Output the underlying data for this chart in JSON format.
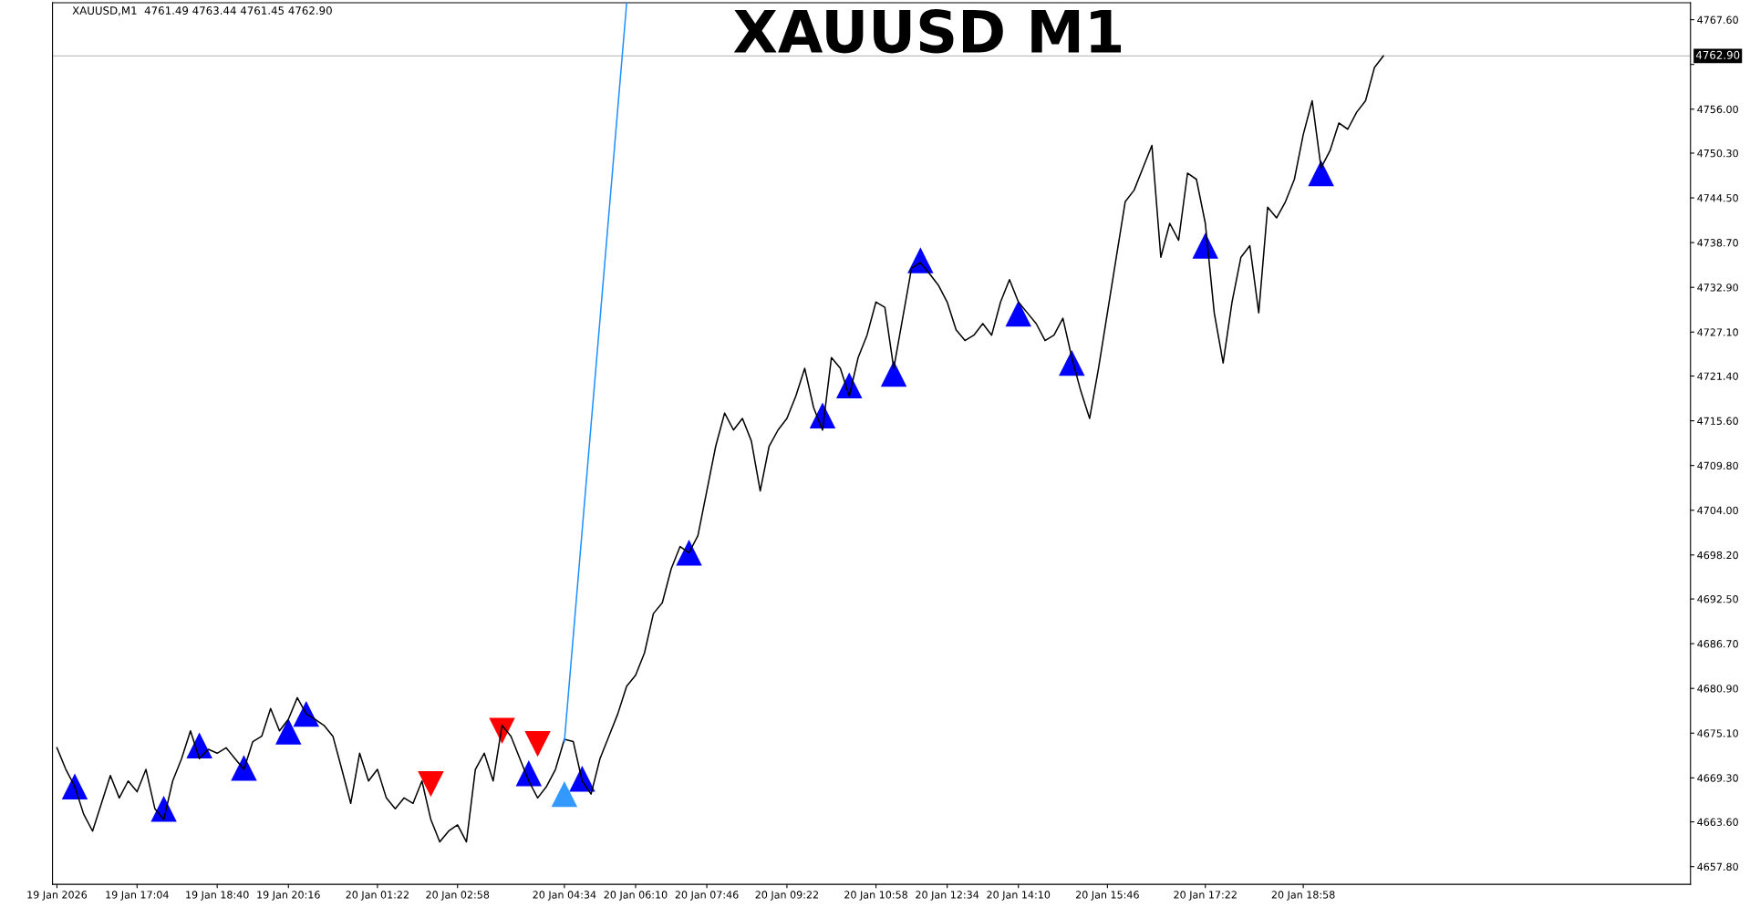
{
  "chart_data": {
    "type": "line",
    "title": "XAUUSD M1",
    "annotations": [
      "XAUUSD,M1  4761.49 4763.44 4761.45 4762.90"
    ],
    "categories": [
      "19 Jan 2026",
      null,
      null,
      null,
      null,
      null,
      null,
      null,
      null,
      "19 Jan 17:04",
      null,
      null,
      null,
      null,
      null,
      null,
      null,
      null,
      "19 Jan 18:40",
      null,
      null,
      null,
      null,
      null,
      null,
      null,
      "19 Jan 20:16",
      null,
      null,
      null,
      null,
      null,
      null,
      null,
      null,
      null,
      "20 Jan 01:22",
      null,
      null,
      null,
      null,
      null,
      null,
      null,
      null,
      "20 Jan 02:58",
      null,
      null,
      null,
      null,
      null,
      null,
      null,
      null,
      null,
      null,
      null,
      "20 Jan 04:34",
      null,
      null,
      null,
      null,
      null,
      null,
      null,
      "20 Jan 06:10",
      null,
      null,
      null,
      null,
      null,
      null,
      null,
      "20 Jan 07:46",
      null,
      null,
      null,
      null,
      null,
      null,
      null,
      null,
      "20 Jan 09:22",
      null,
      null,
      null,
      null,
      null,
      null,
      null,
      null,
      null,
      "20 Jan 10:58",
      null,
      null,
      null,
      null,
      null,
      null,
      null,
      "20 Jan 12:34",
      null,
      null,
      null,
      null,
      null,
      null,
      null,
      "20 Jan 14:10",
      null,
      null,
      null,
      null,
      null,
      null,
      null,
      null,
      null,
      "20 Jan 15:46",
      null,
      null,
      null,
      null,
      null,
      null,
      null,
      null,
      null,
      null,
      "20 Jan 17:22",
      null,
      null,
      null,
      null,
      null,
      null,
      null,
      null,
      null,
      null,
      "20 Jan 18:58",
      null,
      null,
      null,
      null,
      null,
      null,
      null,
      null,
      null,
      null,
      null,
      null,
      null,
      null,
      null,
      null,
      null,
      null,
      null,
      null,
      null,
      null,
      null,
      null,
      null,
      null,
      null,
      null,
      null,
      null,
      null,
      null,
      null,
      null,
      null,
      null,
      null,
      null,
      null,
      null,
      null,
      null,
      null
    ],
    "ylim": [
      4655.5,
      4769.8
    ],
    "yticks": [
      {
        "value": 4767.6,
        "label": "4767.60"
      },
      {
        "value": 4761.8,
        "label": null
      },
      {
        "value": 4756.0,
        "label": "4756.00"
      },
      {
        "value": 4750.3,
        "label": "4750.30"
      },
      {
        "value": 4744.5,
        "label": "4744.50"
      },
      {
        "value": 4738.7,
        "label": "4738.70"
      },
      {
        "value": 4732.9,
        "label": "4732.90"
      },
      {
        "value": 4727.1,
        "label": "4727.10"
      },
      {
        "value": 4721.4,
        "label": "4721.40"
      },
      {
        "value": 4715.6,
        "label": "4715.60"
      },
      {
        "value": 4709.8,
        "label": "4709.80"
      },
      {
        "value": 4704.0,
        "label": "4704.00"
      },
      {
        "value": 4698.2,
        "label": "4698.20"
      },
      {
        "value": 4692.5,
        "label": "4692.50"
      },
      {
        "value": 4686.7,
        "label": "4686.70"
      },
      {
        "value": 4680.9,
        "label": "4680.90"
      },
      {
        "value": 4675.1,
        "label": "4675.10"
      },
      {
        "value": 4669.3,
        "label": "4669.30"
      },
      {
        "value": 4663.6,
        "label": "4663.60"
      },
      {
        "value": 4657.8,
        "label": "4657.80"
      }
    ],
    "ref_lines": [
      {
        "axis": "y",
        "value": 4762.9,
        "label": "4762.90",
        "color": "#c0c0c0"
      }
    ],
    "series": [
      {
        "color": "#000000",
        "values": [
          4673.2,
          4670.4,
          4668.2,
          4664.6,
          4662.4,
          4666.0,
          4669.6,
          4666.7,
          4668.9,
          4667.5,
          4670.4,
          4665.3,
          4663.9,
          4668.9,
          4671.8,
          4675.4,
          4671.8,
          4673.0,
          4672.5,
          4673.2,
          4671.8,
          4670.4,
          4674.0,
          4674.7,
          4678.3,
          4675.4,
          4676.9,
          4679.7,
          4677.6,
          4676.9,
          4676.1,
          4674.7,
          4670.4,
          4666.0,
          4672.5,
          4668.9,
          4670.4,
          4666.7,
          4665.3,
          4666.7,
          4666.0,
          4668.9,
          4663.9,
          4661.0,
          4662.4,
          4663.2,
          4661.0,
          4670.4,
          4672.5,
          4668.9,
          4676.1,
          4674.7,
          4671.8,
          4668.9,
          4666.7,
          4668.2,
          4670.4,
          4674.3,
          4674.0,
          4668.9,
          4667.2,
          4671.8,
          4674.7,
          4677.6,
          4681.2,
          4682.6,
          4685.5,
          4690.6,
          4692.0,
          4696.4,
          4699.3,
          4698.5,
          4700.7,
          4706.5,
          4712.3,
          4716.6,
          4714.4,
          4715.9,
          4713.0,
          4706.5,
          4712.3,
          4714.4,
          4715.9,
          4718.8,
          4722.4,
          4717.3,
          4714.4,
          4723.8,
          4722.4,
          4718.8,
          4723.8,
          4726.7,
          4731.0,
          4730.3,
          4722.4,
          4728.9,
          4735.4,
          4736.1,
          4734.7,
          4733.2,
          4731.0,
          4727.4,
          4726.0,
          4726.7,
          4728.2,
          4726.7,
          4731.0,
          4733.9,
          4731.0,
          4729.6,
          4728.2,
          4726.0,
          4726.7,
          4728.9,
          4723.8,
          4719.5,
          4715.9,
          4722.4,
          4729.6,
          4736.8,
          4744.0,
          4745.5,
          4748.4,
          4751.3,
          4736.8,
          4741.2,
          4739.0,
          4747.7,
          4746.9,
          4741.2,
          4729.6,
          4723.1,
          4731.0,
          4736.8,
          4738.3,
          4729.6,
          4743.3,
          4741.9,
          4744.0,
          4746.9,
          4752.7,
          4757.1,
          4748.4,
          4750.6,
          4754.2,
          4753.4,
          4755.6,
          4757.1,
          4761.4,
          4762.9,
          null,
          null,
          null,
          null,
          null,
          null,
          null,
          null,
          null,
          null,
          null,
          null,
          null,
          null,
          null,
          null,
          null,
          null,
          null,
          null,
          null,
          null,
          null,
          null,
          null,
          null,
          null,
          null,
          null,
          null,
          null,
          null,
          null,
          null
        ]
      },
      {
        "color": "#1e90ff",
        "values": [
          null,
          null,
          null,
          null,
          null,
          null,
          null,
          null,
          null,
          null,
          null,
          null,
          null,
          null,
          null,
          null,
          null,
          null,
          null,
          null,
          null,
          null,
          null,
          null,
          null,
          null,
          null,
          null,
          null,
          null,
          null,
          null,
          null,
          null,
          null,
          null,
          null,
          null,
          null,
          null,
          null,
          null,
          null,
          null,
          null,
          null,
          null,
          null,
          null,
          null,
          null,
          null,
          null,
          null,
          null,
          null,
          null,
          4674.0,
          4687.7,
          4701.4,
          4715.1,
          4728.7,
          4742.4,
          4756.1,
          4769.8,
          null,
          null,
          null,
          null,
          null,
          null,
          null,
          null,
          null,
          null,
          null,
          null,
          null,
          null,
          null,
          null,
          null,
          null,
          null,
          null,
          null,
          null,
          null,
          null,
          null,
          null,
          null,
          null,
          null,
          null,
          null,
          null,
          null,
          null,
          null,
          null,
          null,
          null,
          null,
          null,
          null,
          null,
          null,
          null,
          null,
          null,
          null,
          null,
          null,
          null,
          null,
          null,
          null,
          null,
          null,
          null,
          null,
          null,
          null,
          null,
          null,
          null,
          null,
          null,
          null,
          null,
          null,
          null,
          null,
          null,
          null,
          null,
          null,
          null,
          null,
          null,
          null,
          null,
          null,
          null,
          null,
          null,
          null,
          null,
          null,
          null,
          null,
          null,
          null,
          null,
          null,
          null,
          null,
          null,
          null,
          null,
          null,
          null,
          null,
          null,
          null,
          null,
          null,
          null,
          null,
          null,
          null,
          null,
          null,
          null,
          null,
          null,
          null,
          null,
          null,
          null,
          null,
          null,
          null
        ]
      },
      {
        "type": "scatter",
        "color": "#0000ff",
        "marker": "triangle",
        "values": [
          null,
          null,
          4668.2,
          null,
          null,
          null,
          null,
          null,
          null,
          null,
          null,
          null,
          4665.3,
          null,
          null,
          null,
          4673.5,
          null,
          null,
          null,
          null,
          4670.6,
          null,
          null,
          null,
          null,
          4675.3,
          null,
          4677.6,
          null,
          null,
          null,
          null,
          null,
          null,
          null,
          null,
          null,
          null,
          null,
          null,
          null,
          null,
          null,
          null,
          null,
          null,
          null,
          null,
          null,
          null,
          null,
          null,
          4669.9,
          null,
          null,
          null,
          null,
          null,
          4669.2,
          null,
          null,
          null,
          null,
          null,
          null,
          null,
          null,
          null,
          null,
          null,
          4698.5,
          null,
          null,
          null,
          null,
          null,
          null,
          null,
          null,
          null,
          null,
          null,
          null,
          null,
          null,
          4716.3,
          null,
          null,
          4720.2,
          null,
          null,
          null,
          null,
          4721.7,
          null,
          null,
          4736.4,
          null,
          null,
          null,
          null,
          null,
          null,
          null,
          null,
          null,
          null,
          4729.5,
          null,
          null,
          null,
          null,
          null,
          4723.1,
          null,
          null,
          null,
          null,
          null,
          null,
          null,
          null,
          null,
          null,
          null,
          null,
          null,
          null,
          4738.3,
          null,
          null,
          null,
          null,
          null,
          null,
          null,
          null,
          null,
          null,
          null,
          null,
          4747.7,
          null,
          null,
          null,
          null,
          null,
          null,
          null,
          null,
          null,
          null,
          null,
          null,
          null,
          null,
          null,
          null,
          null,
          null,
          null,
          null,
          null,
          null,
          null,
          null,
          null,
          null,
          null,
          null,
          null,
          null,
          null,
          null,
          null,
          null,
          null,
          null,
          null,
          null,
          null,
          null,
          null
        ]
      },
      {
        "type": "scatter",
        "color": "#ff0000",
        "marker": "triangle-down",
        "values": [
          null,
          null,
          null,
          null,
          null,
          null,
          null,
          null,
          null,
          null,
          null,
          null,
          null,
          null,
          null,
          null,
          null,
          null,
          null,
          null,
          null,
          null,
          null,
          null,
          null,
          null,
          null,
          null,
          null,
          null,
          null,
          null,
          null,
          null,
          null,
          null,
          null,
          null,
          null,
          null,
          null,
          null,
          4668.5,
          null,
          null,
          null,
          null,
          null,
          null,
          null,
          4675.4,
          null,
          null,
          null,
          4673.7,
          null,
          null,
          null,
          null,
          null,
          null,
          null,
          null,
          null,
          null,
          null,
          null,
          null,
          null,
          null,
          null,
          null,
          null,
          null,
          null,
          null,
          null,
          null,
          null,
          null,
          null,
          null,
          null,
          null,
          null,
          null,
          null,
          null,
          null,
          null,
          null,
          null,
          null,
          null,
          null,
          null,
          null,
          null,
          null,
          null,
          null,
          null,
          null,
          null,
          null,
          null,
          null,
          null,
          null,
          null,
          null,
          null,
          null,
          null,
          null,
          null,
          null,
          null,
          null,
          null,
          null,
          null,
          null,
          null,
          null,
          null,
          null,
          null,
          null,
          null,
          null,
          null,
          null,
          null,
          null,
          null,
          null,
          null,
          null,
          null,
          null,
          null,
          null,
          null,
          null,
          null,
          null,
          null,
          null,
          null,
          null,
          null,
          null,
          null,
          null,
          null,
          null,
          null,
          null,
          null,
          null,
          null,
          null,
          null,
          null,
          null,
          null,
          null,
          null,
          null,
          null,
          null,
          null,
          null,
          null,
          null,
          null,
          null,
          null,
          null,
          null,
          null,
          null,
          null
        ]
      },
      {
        "type": "scatter",
        "color": "#3399ff",
        "marker": "triangle",
        "values": [
          null,
          null,
          null,
          null,
          null,
          null,
          null,
          null,
          null,
          null,
          null,
          null,
          null,
          null,
          null,
          null,
          null,
          null,
          null,
          null,
          null,
          null,
          null,
          null,
          null,
          null,
          null,
          null,
          null,
          null,
          null,
          null,
          null,
          null,
          null,
          null,
          null,
          null,
          null,
          null,
          null,
          null,
          null,
          null,
          null,
          null,
          null,
          null,
          null,
          null,
          null,
          null,
          null,
          null,
          null,
          null,
          null,
          4667.2,
          null,
          null,
          null,
          null,
          null,
          null,
          null,
          null,
          null,
          null,
          null,
          null,
          null,
          null,
          null,
          null,
          null,
          null,
          null,
          null,
          null,
          null,
          null,
          null,
          null,
          null,
          null,
          null,
          null,
          null,
          null,
          null,
          null,
          null,
          null,
          null,
          null,
          null,
          null,
          null,
          null,
          null,
          null,
          null,
          null,
          null,
          null,
          null,
          null,
          null,
          null,
          null,
          null,
          null,
          null,
          null,
          null,
          null,
          null,
          null,
          null,
          null,
          null,
          null,
          null,
          null,
          null,
          null,
          null,
          null,
          null,
          null,
          null,
          null,
          null,
          null,
          null,
          null,
          null,
          null,
          null,
          null,
          null,
          null,
          null,
          null,
          null,
          null,
          null,
          null,
          null,
          null,
          null,
          null,
          null,
          null,
          null,
          null,
          null,
          null,
          null,
          null,
          null,
          null,
          null,
          null,
          null,
          null,
          null,
          null,
          null,
          null,
          null,
          null,
          null,
          null,
          null,
          null,
          null,
          null,
          null,
          null,
          null,
          null,
          null,
          null
        ]
      }
    ]
  }
}
